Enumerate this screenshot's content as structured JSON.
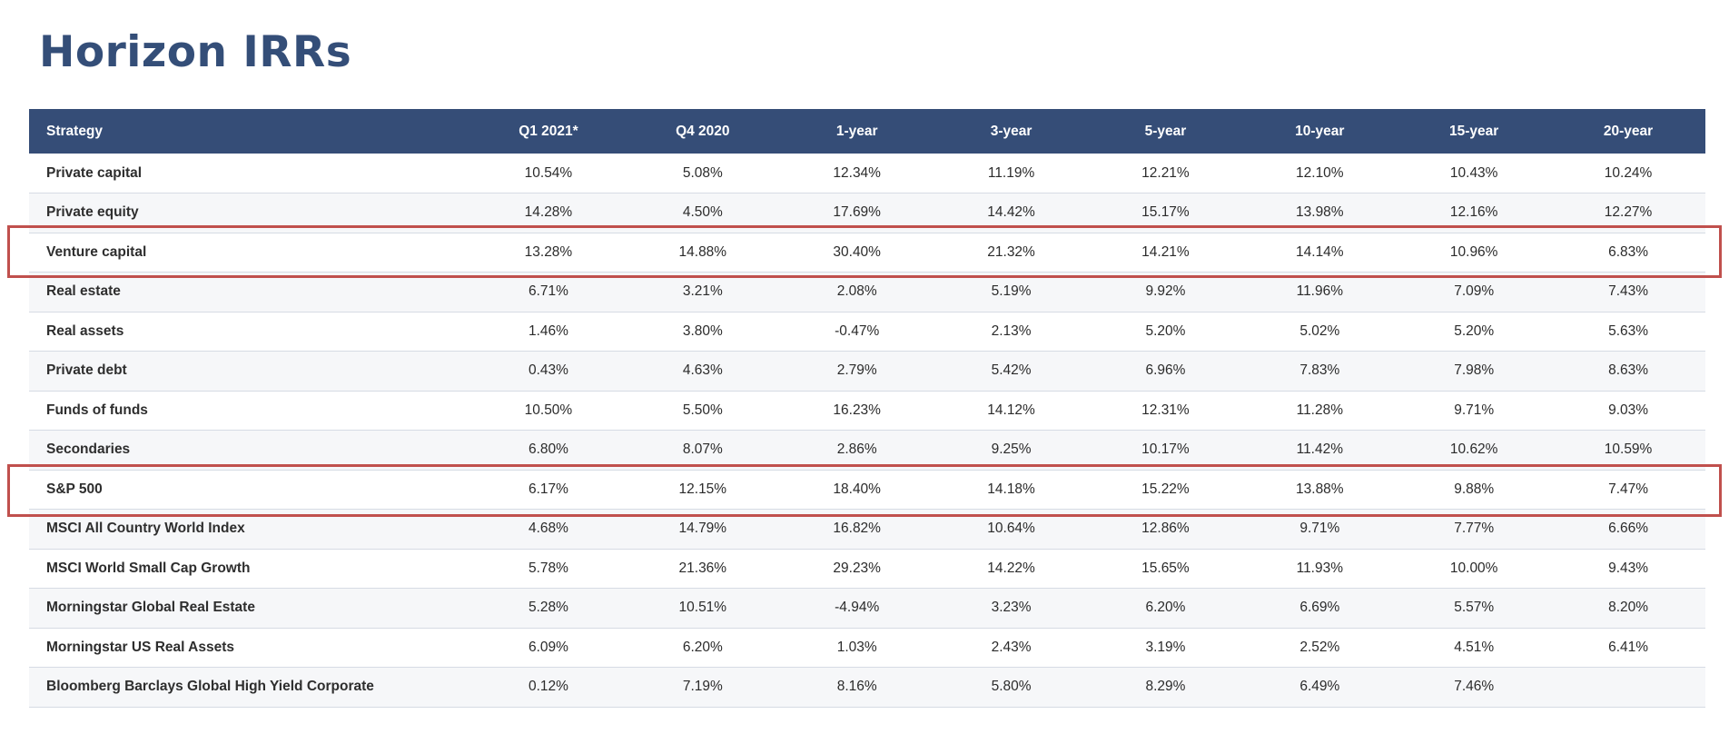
{
  "title": "Horizon IRRs",
  "highlight_color": "#c0504d",
  "header_color": "#354d77",
  "table": {
    "headers": [
      "Strategy",
      "Q1 2021*",
      "Q4 2020",
      "1-year",
      "3-year",
      "5-year",
      "10-year",
      "15-year",
      "20-year"
    ],
    "rows": [
      {
        "strategy": "Private capital",
        "values": [
          "10.54%",
          "5.08%",
          "12.34%",
          "11.19%",
          "12.21%",
          "12.10%",
          "10.43%",
          "10.24%"
        ]
      },
      {
        "strategy": "Private equity",
        "values": [
          "14.28%",
          "4.50%",
          "17.69%",
          "14.42%",
          "15.17%",
          "13.98%",
          "12.16%",
          "12.27%"
        ]
      },
      {
        "strategy": "Venture capital",
        "values": [
          "13.28%",
          "14.88%",
          "30.40%",
          "21.32%",
          "14.21%",
          "14.14%",
          "10.96%",
          "6.83%"
        ],
        "highlighted": true
      },
      {
        "strategy": "Real estate",
        "values": [
          "6.71%",
          "3.21%",
          "2.08%",
          "5.19%",
          "9.92%",
          "11.96%",
          "7.09%",
          "7.43%"
        ]
      },
      {
        "strategy": "Real assets",
        "values": [
          "1.46%",
          "3.80%",
          "-0.47%",
          "2.13%",
          "5.20%",
          "5.02%",
          "5.20%",
          "5.63%"
        ]
      },
      {
        "strategy": "Private debt",
        "values": [
          "0.43%",
          "4.63%",
          "2.79%",
          "5.42%",
          "6.96%",
          "7.83%",
          "7.98%",
          "8.63%"
        ]
      },
      {
        "strategy": "Funds of funds",
        "values": [
          "10.50%",
          "5.50%",
          "16.23%",
          "14.12%",
          "12.31%",
          "11.28%",
          "9.71%",
          "9.03%"
        ]
      },
      {
        "strategy": "Secondaries",
        "values": [
          "6.80%",
          "8.07%",
          "2.86%",
          "9.25%",
          "10.17%",
          "11.42%",
          "10.62%",
          "10.59%"
        ]
      },
      {
        "strategy": "S&P 500",
        "values": [
          "6.17%",
          "12.15%",
          "18.40%",
          "14.18%",
          "15.22%",
          "13.88%",
          "9.88%",
          "7.47%"
        ],
        "highlighted": true
      },
      {
        "strategy": "MSCI All Country World Index",
        "values": [
          "4.68%",
          "14.79%",
          "16.82%",
          "10.64%",
          "12.86%",
          "9.71%",
          "7.77%",
          "6.66%"
        ]
      },
      {
        "strategy": "MSCI World Small Cap Growth",
        "values": [
          "5.78%",
          "21.36%",
          "29.23%",
          "14.22%",
          "15.65%",
          "11.93%",
          "10.00%",
          "9.43%"
        ]
      },
      {
        "strategy": "Morningstar Global Real Estate",
        "values": [
          "5.28%",
          "10.51%",
          "-4.94%",
          "3.23%",
          "6.20%",
          "6.69%",
          "5.57%",
          "8.20%"
        ]
      },
      {
        "strategy": "Morningstar US Real Assets",
        "values": [
          "6.09%",
          "6.20%",
          "1.03%",
          "2.43%",
          "3.19%",
          "2.52%",
          "4.51%",
          "6.41%"
        ]
      },
      {
        "strategy": "Bloomberg Barclays Global High Yield Corporate",
        "values": [
          "0.12%",
          "7.19%",
          "8.16%",
          "5.80%",
          "8.29%",
          "6.49%",
          "7.46%",
          ""
        ]
      }
    ]
  }
}
